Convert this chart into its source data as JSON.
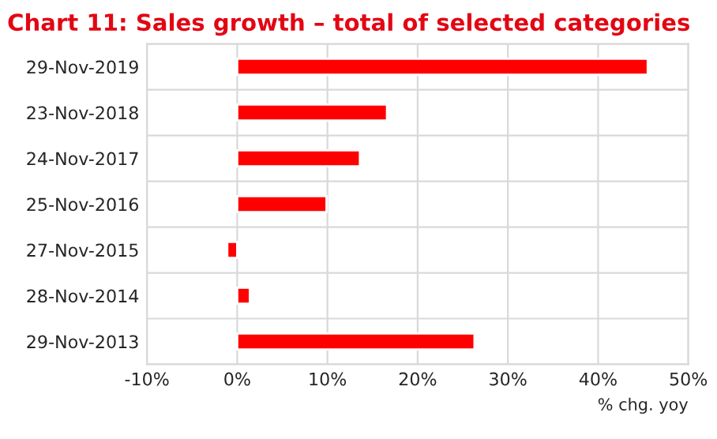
{
  "chart_data": {
    "type": "bar",
    "orientation": "horizontal",
    "title": "Chart 11: Sales growth – total of selected categories",
    "xlabel": "% chg. yoy",
    "categories": [
      "29-Nov-2019",
      "23-Nov-2018",
      "24-Nov-2017",
      "25-Nov-2016",
      "27-Nov-2015",
      "28-Nov-2014",
      "29-Nov-2013"
    ],
    "values": [
      45.5,
      16.6,
      13.6,
      9.9,
      -1.1,
      1.4,
      26.3
    ],
    "color": "#ff0000",
    "xlim": [
      -10,
      50
    ],
    "xticks": [
      {
        "value": -10,
        "label": "-10%"
      },
      {
        "value": 0,
        "label": "0%"
      },
      {
        "value": 10,
        "label": "10%"
      },
      {
        "value": 20,
        "label": "20%"
      },
      {
        "value": 30,
        "label": "30%"
      },
      {
        "value": 40,
        "label": "40%"
      },
      {
        "value": 50,
        "label": "50%"
      }
    ],
    "grid": true,
    "legend": false
  }
}
